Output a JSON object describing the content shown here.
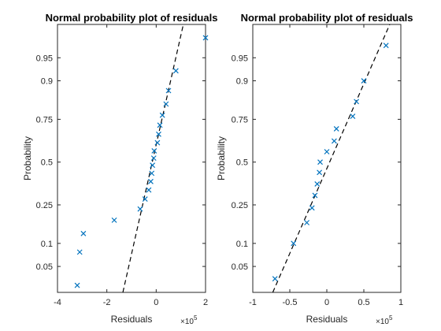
{
  "colors": {
    "marker": "#0072BD",
    "reference_line": "#000000",
    "axes": "#262626",
    "background": "#ffffff"
  },
  "chart_data": [
    {
      "type": "scatter",
      "title": "Normal probability plot of residuals",
      "xlabel": "Residuals",
      "ylabel": "Probability",
      "x_exponent_label": "×10^5",
      "x_scale_factor": 100000,
      "xlim": [
        -400000,
        200000
      ],
      "ylim": [
        0.02,
        0.985
      ],
      "y_scale": "normal-probability",
      "x_ticks": [
        -400000,
        -200000,
        0,
        200000
      ],
      "x_tick_labels": [
        "-4",
        "-2",
        "0",
        "2"
      ],
      "y_ticks": [
        0.05,
        0.1,
        0.25,
        0.5,
        0.75,
        0.9,
        0.95
      ],
      "y_tick_labels": [
        "0.05",
        "0.1",
        "0.25",
        "0.5",
        "0.75",
        "0.9",
        "0.95"
      ],
      "grid": false,
      "series": [
        {
          "marker": "x",
          "points": [
            {
              "x": -320000,
              "y": 0.026
            },
            {
              "x": -310000,
              "y": 0.078
            },
            {
              "x": -295000,
              "y": 0.13
            },
            {
              "x": -170000,
              "y": 0.18
            },
            {
              "x": -65000,
              "y": 0.23
            },
            {
              "x": -45000,
              "y": 0.28
            },
            {
              "x": -30000,
              "y": 0.33
            },
            {
              "x": -22000,
              "y": 0.38
            },
            {
              "x": -18000,
              "y": 0.43
            },
            {
              "x": -15000,
              "y": 0.48
            },
            {
              "x": -10000,
              "y": 0.525
            },
            {
              "x": -8000,
              "y": 0.57
            },
            {
              "x": 5000,
              "y": 0.62
            },
            {
              "x": 10000,
              "y": 0.67
            },
            {
              "x": 15000,
              "y": 0.72
            },
            {
              "x": 25000,
              "y": 0.77
            },
            {
              "x": 40000,
              "y": 0.82
            },
            {
              "x": 50000,
              "y": 0.87
            },
            {
              "x": 80000,
              "y": 0.925
            },
            {
              "x": 200000,
              "y": 0.975
            }
          ]
        }
      ],
      "reference_line": {
        "style": "dashed",
        "points": [
          [
            -135000,
            0.02
          ],
          [
            110000,
            0.985
          ]
        ]
      }
    },
    {
      "type": "scatter",
      "title": "Normal probability plot of residuals",
      "xlabel": "Residuals",
      "ylabel": "Probability",
      "x_exponent_label": "×10^5",
      "x_scale_factor": 100000,
      "xlim": [
        -100000,
        100000
      ],
      "ylim": [
        0.02,
        0.985
      ],
      "y_scale": "normal-probability",
      "x_ticks": [
        -100000,
        -50000,
        0,
        50000,
        100000
      ],
      "x_tick_labels": [
        "-1",
        "-0.5",
        "0",
        "0.5",
        "1"
      ],
      "y_ticks": [
        0.05,
        0.1,
        0.25,
        0.5,
        0.75,
        0.9,
        0.95
      ],
      "y_tick_labels": [
        "0.05",
        "0.1",
        "0.25",
        "0.5",
        "0.75",
        "0.9",
        "0.95"
      ],
      "grid": false,
      "series": [
        {
          "marker": "x",
          "points": [
            {
              "x": -70000,
              "y": 0.033
            },
            {
              "x": -45000,
              "y": 0.1
            },
            {
              "x": -27000,
              "y": 0.17
            },
            {
              "x": -20000,
              "y": 0.235
            },
            {
              "x": -16000,
              "y": 0.3
            },
            {
              "x": -13000,
              "y": 0.365
            },
            {
              "x": -10000,
              "y": 0.435
            },
            {
              "x": -9000,
              "y": 0.5
            },
            {
              "x": 0,
              "y": 0.565
            },
            {
              "x": 10000,
              "y": 0.63
            },
            {
              "x": 13000,
              "y": 0.7
            },
            {
              "x": 35000,
              "y": 0.765
            },
            {
              "x": 40000,
              "y": 0.83
            },
            {
              "x": 50000,
              "y": 0.9
            },
            {
              "x": 80000,
              "y": 0.967
            }
          ]
        }
      ],
      "reference_line": {
        "style": "dashed",
        "points": [
          [
            -73000,
            0.02
          ],
          [
            85000,
            0.985
          ]
        ]
      }
    }
  ]
}
